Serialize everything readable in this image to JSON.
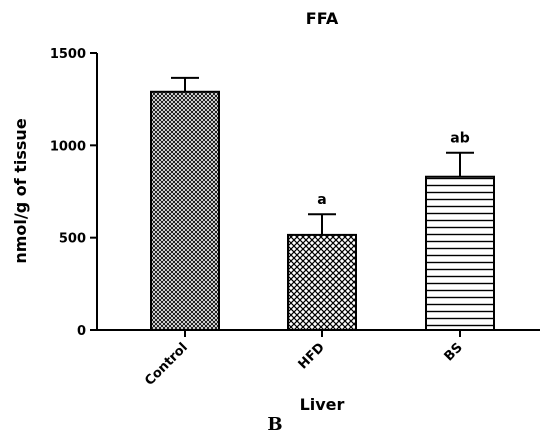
{
  "panel_label": "B",
  "chart_data": {
    "type": "bar",
    "title": "FFA",
    "xlabel": "Liver",
    "ylabel": "nmol/g of tissue",
    "categories": [
      "Control",
      "HFD",
      "BS"
    ],
    "values": [
      1290,
      515,
      830
    ],
    "errors": [
      75,
      112,
      130
    ],
    "annotations": [
      "",
      "a",
      "ab"
    ],
    "ylim": [
      0,
      1500
    ],
    "yticks": [
      0,
      500,
      1000,
      1500
    ],
    "patterns": [
      "crosshatch-fine",
      "crosshatch-coarse",
      "horizontal-lines"
    ],
    "grid": false,
    "legend": "none"
  }
}
